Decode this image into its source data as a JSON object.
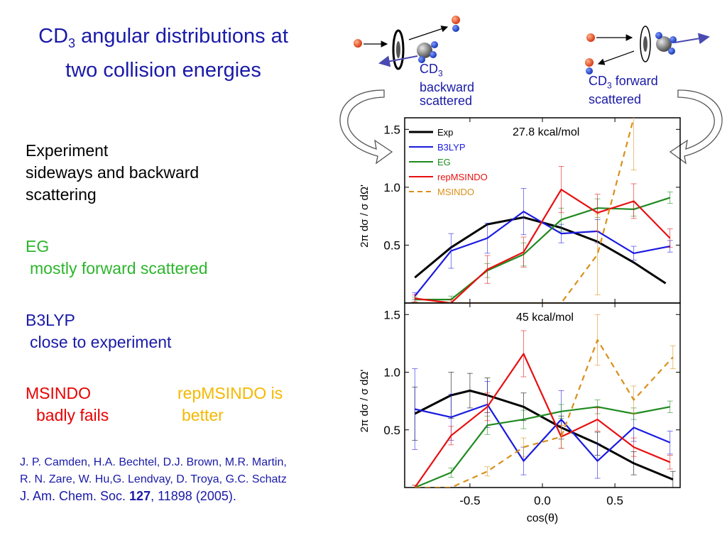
{
  "slide": {
    "title_main": "CD",
    "title_sub": "3",
    "title_rest1": " angular distributions at",
    "title_line2": "two collision energies",
    "experiment": [
      "Experiment",
      "sideways and backward",
      "scattering"
    ],
    "eg_head": "EG",
    "eg_text": "mostly forward scattered",
    "b3_head": "B3LYP",
    "b3_text": "close to experiment",
    "ms_head": "MSINDO",
    "ms_text": "badly fails",
    "rep_head": "repMSINDO is",
    "rep_text": "better",
    "ref_line1": "J. P. Camden, H.A. Bechtel, D.J.  Brown, M.R. Martin,",
    "ref_line2": "R. N. Zare, W. Hu,G.  Lendvay, D. Troya, G.C. Schatz",
    "ref_journal": "J. Am. Chem. Soc. ",
    "ref_volume": "127",
    "ref_pages": ", 11898 (2005).",
    "backward_cd": "CD",
    "backward_sub": "3",
    "backward_l2": "backward",
    "backward_l3": "scattered",
    "forward_cd": "CD",
    "forward_sub": "3",
    "forward_rest": " forward",
    "forward_l2": "scattered"
  },
  "colors": {
    "Exp": "#000000",
    "B3LYP": "#1a1ae0",
    "EG": "#1f8a1f",
    "repMSINDO": "#e81010",
    "MSINDO": "#d9901a"
  },
  "chart_data": [
    {
      "type": "line",
      "annotation": "27.8 kcal/mol",
      "xlabel": "",
      "ylabel": "2π dσ / σ dΩ'",
      "xlim": [
        -0.95,
        0.95
      ],
      "ylim": [
        0,
        1.6
      ],
      "yticks": [
        "0.5",
        "1.0",
        "1.5"
      ],
      "legend": "top-left",
      "series": [
        {
          "name": "Exp",
          "x": [
            -0.88,
            -0.63,
            -0.38,
            -0.13,
            0.13,
            0.38,
            0.63,
            0.85
          ],
          "y": [
            0.22,
            0.48,
            0.68,
            0.74,
            0.65,
            0.53,
            0.35,
            0.17
          ]
        },
        {
          "name": "B3LYP",
          "x": [
            -0.88,
            -0.63,
            -0.38,
            -0.13,
            0.13,
            0.38,
            0.63,
            0.88
          ],
          "y": [
            0.06,
            0.45,
            0.56,
            0.79,
            0.6,
            0.62,
            0.43,
            0.49
          ],
          "err": [
            0.03,
            0.15,
            0.13,
            0.2,
            0.08,
            0.1,
            0.06,
            0.05
          ]
        },
        {
          "name": "EG",
          "x": [
            -0.88,
            -0.63,
            -0.38,
            -0.13,
            0.13,
            0.38,
            0.63,
            0.88
          ],
          "y": [
            0.03,
            0.03,
            0.28,
            0.42,
            0.72,
            0.82,
            0.81,
            0.91
          ],
          "err": [
            0.02,
            0.03,
            0.06,
            0.1,
            0.1,
            0.08,
            0.06,
            0.05
          ]
        },
        {
          "name": "repMSINDO",
          "x": [
            -0.88,
            -0.63,
            -0.38,
            -0.13,
            0.13,
            0.38,
            0.63,
            0.88
          ],
          "y": [
            0.04,
            0.0,
            0.29,
            0.44,
            0.98,
            0.78,
            0.88,
            0.56
          ],
          "err": [
            0.03,
            0.03,
            0.12,
            0.13,
            0.2,
            0.16,
            0.15,
            0.08
          ]
        },
        {
          "name": "MSINDO",
          "dashed": true,
          "x": [
            -0.88,
            -0.63,
            -0.38,
            -0.13,
            0.13,
            0.38,
            0.63
          ],
          "y": [
            0.0,
            0.0,
            0.0,
            0.0,
            0.0,
            0.42,
            1.6
          ],
          "err": [
            0,
            0,
            0,
            0,
            0,
            0.35,
            0.45
          ]
        }
      ]
    },
    {
      "type": "line",
      "annotation": "45 kcal/mol",
      "xlabel": "cos(θ)",
      "ylabel": "2π dσ / σ dΩ'",
      "xlim": [
        -0.95,
        0.95
      ],
      "ylim": [
        0,
        1.6
      ],
      "xticks": [
        "-0.5",
        "0.0",
        "0.5"
      ],
      "yticks": [
        "0.5",
        "1.0",
        "1.5"
      ],
      "series": [
        {
          "name": "Exp",
          "x": [
            -0.88,
            -0.63,
            -0.5,
            -0.38,
            -0.13,
            0.13,
            0.38,
            0.63,
            0.9
          ],
          "y": [
            0.64,
            0.8,
            0.84,
            0.8,
            0.7,
            0.52,
            0.38,
            0.21,
            0.07
          ],
          "err": [
            0.23,
            0.2,
            0.15,
            0.15,
            0.12,
            0.1,
            0.1,
            0.1,
            0.07
          ]
        },
        {
          "name": "B3LYP",
          "x": [
            -0.88,
            -0.63,
            -0.38,
            -0.13,
            0.13,
            0.38,
            0.63,
            0.88
          ],
          "y": [
            0.68,
            0.61,
            0.72,
            0.23,
            0.59,
            0.23,
            0.52,
            0.39
          ],
          "err": [
            0.35,
            0.2,
            0.2,
            0.12,
            0.25,
            0.15,
            0.12,
            0.1
          ]
        },
        {
          "name": "EG",
          "x": [
            -0.88,
            -0.63,
            -0.38,
            -0.13,
            0.13,
            0.38,
            0.63,
            0.88
          ],
          "y": [
            0.0,
            0.13,
            0.54,
            0.59,
            0.66,
            0.7,
            0.64,
            0.7
          ],
          "err": [
            0.02,
            0.04,
            0.08,
            0.08,
            0.06,
            0.06,
            0.05,
            0.05
          ]
        },
        {
          "name": "repMSINDO",
          "x": [
            -0.88,
            -0.63,
            -0.38,
            -0.13,
            0.13,
            0.38,
            0.63,
            0.88
          ],
          "y": [
            0.0,
            0.45,
            0.7,
            1.16,
            0.44,
            0.59,
            0.35,
            0.22
          ],
          "err": [
            0.02,
            0.08,
            0.12,
            0.2,
            0.1,
            0.1,
            0.08,
            0.06
          ]
        },
        {
          "name": "MSINDO",
          "dashed": true,
          "x": [
            -0.88,
            -0.63,
            -0.38,
            -0.13,
            0.13,
            0.38,
            0.63,
            0.9
          ],
          "y": [
            0.0,
            0.0,
            0.14,
            0.35,
            0.44,
            1.28,
            0.76,
            1.13
          ],
          "err": [
            0,
            0,
            0.04,
            0.08,
            0.1,
            0.22,
            0.12,
            0.1
          ]
        }
      ]
    }
  ]
}
